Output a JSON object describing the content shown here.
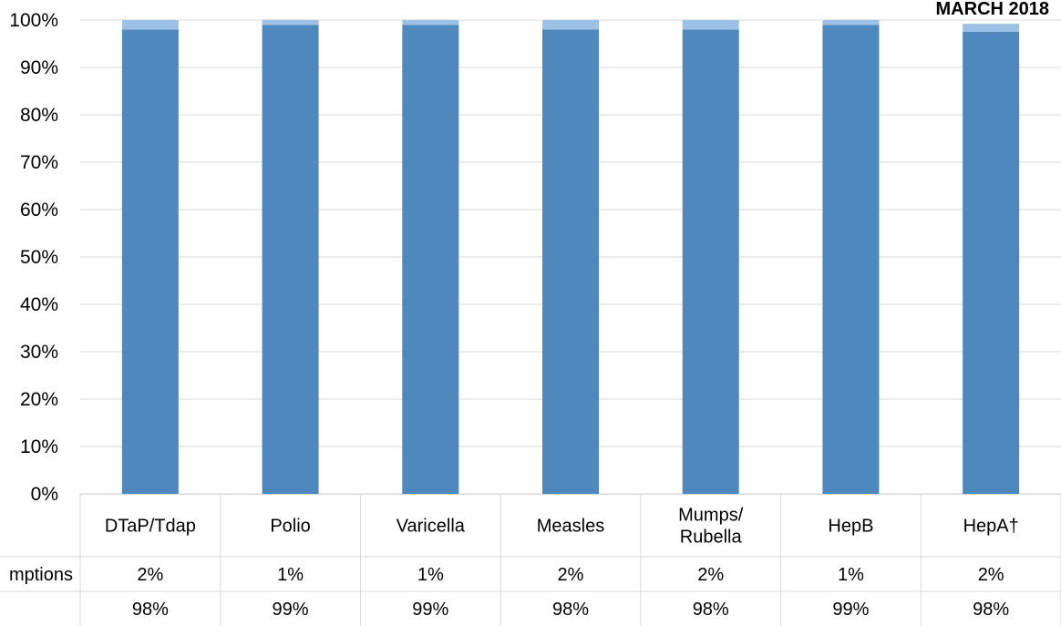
{
  "chart_data": {
    "type": "bar",
    "stacked": true,
    "title": "MARCH 2018",
    "categories": [
      "DTaP/Tdap",
      "Polio",
      "Varicella",
      "Measles",
      "Mumps/ Rubella",
      "HepB",
      "HepA†"
    ],
    "category_lines": [
      [
        "DTaP/Tdap"
      ],
      [
        "Polio"
      ],
      [
        "Varicella"
      ],
      [
        "Measles"
      ],
      [
        "Mumps/",
        "Rubella"
      ],
      [
        "HepB"
      ],
      [
        "HepA†"
      ]
    ],
    "series": [
      {
        "name": "",
        "values": [
          98,
          99,
          99,
          98,
          98,
          99,
          97.5
        ],
        "color": "#4f88bc"
      },
      {
        "name": "mptions",
        "values": [
          2,
          1,
          1,
          2,
          2,
          1,
          1.7
        ],
        "color": "#9dc1e5"
      }
    ],
    "table_rows": [
      {
        "label": "mptions",
        "cells": [
          "2%",
          "1%",
          "1%",
          "2%",
          "2%",
          "1%",
          "2%"
        ]
      },
      {
        "label": "",
        "cells": [
          "98%",
          "99%",
          "99%",
          "98%",
          "98%",
          "99%",
          "98%"
        ]
      }
    ],
    "ylim": [
      0,
      100
    ],
    "yticks": [
      "0%",
      "10%",
      "20%",
      "30%",
      "40%",
      "50%",
      "60%",
      "70%",
      "80%",
      "90%",
      "100%"
    ],
    "xlabel": "",
    "ylabel": "",
    "grid": true,
    "gridline_color": "#d9d9d9"
  }
}
